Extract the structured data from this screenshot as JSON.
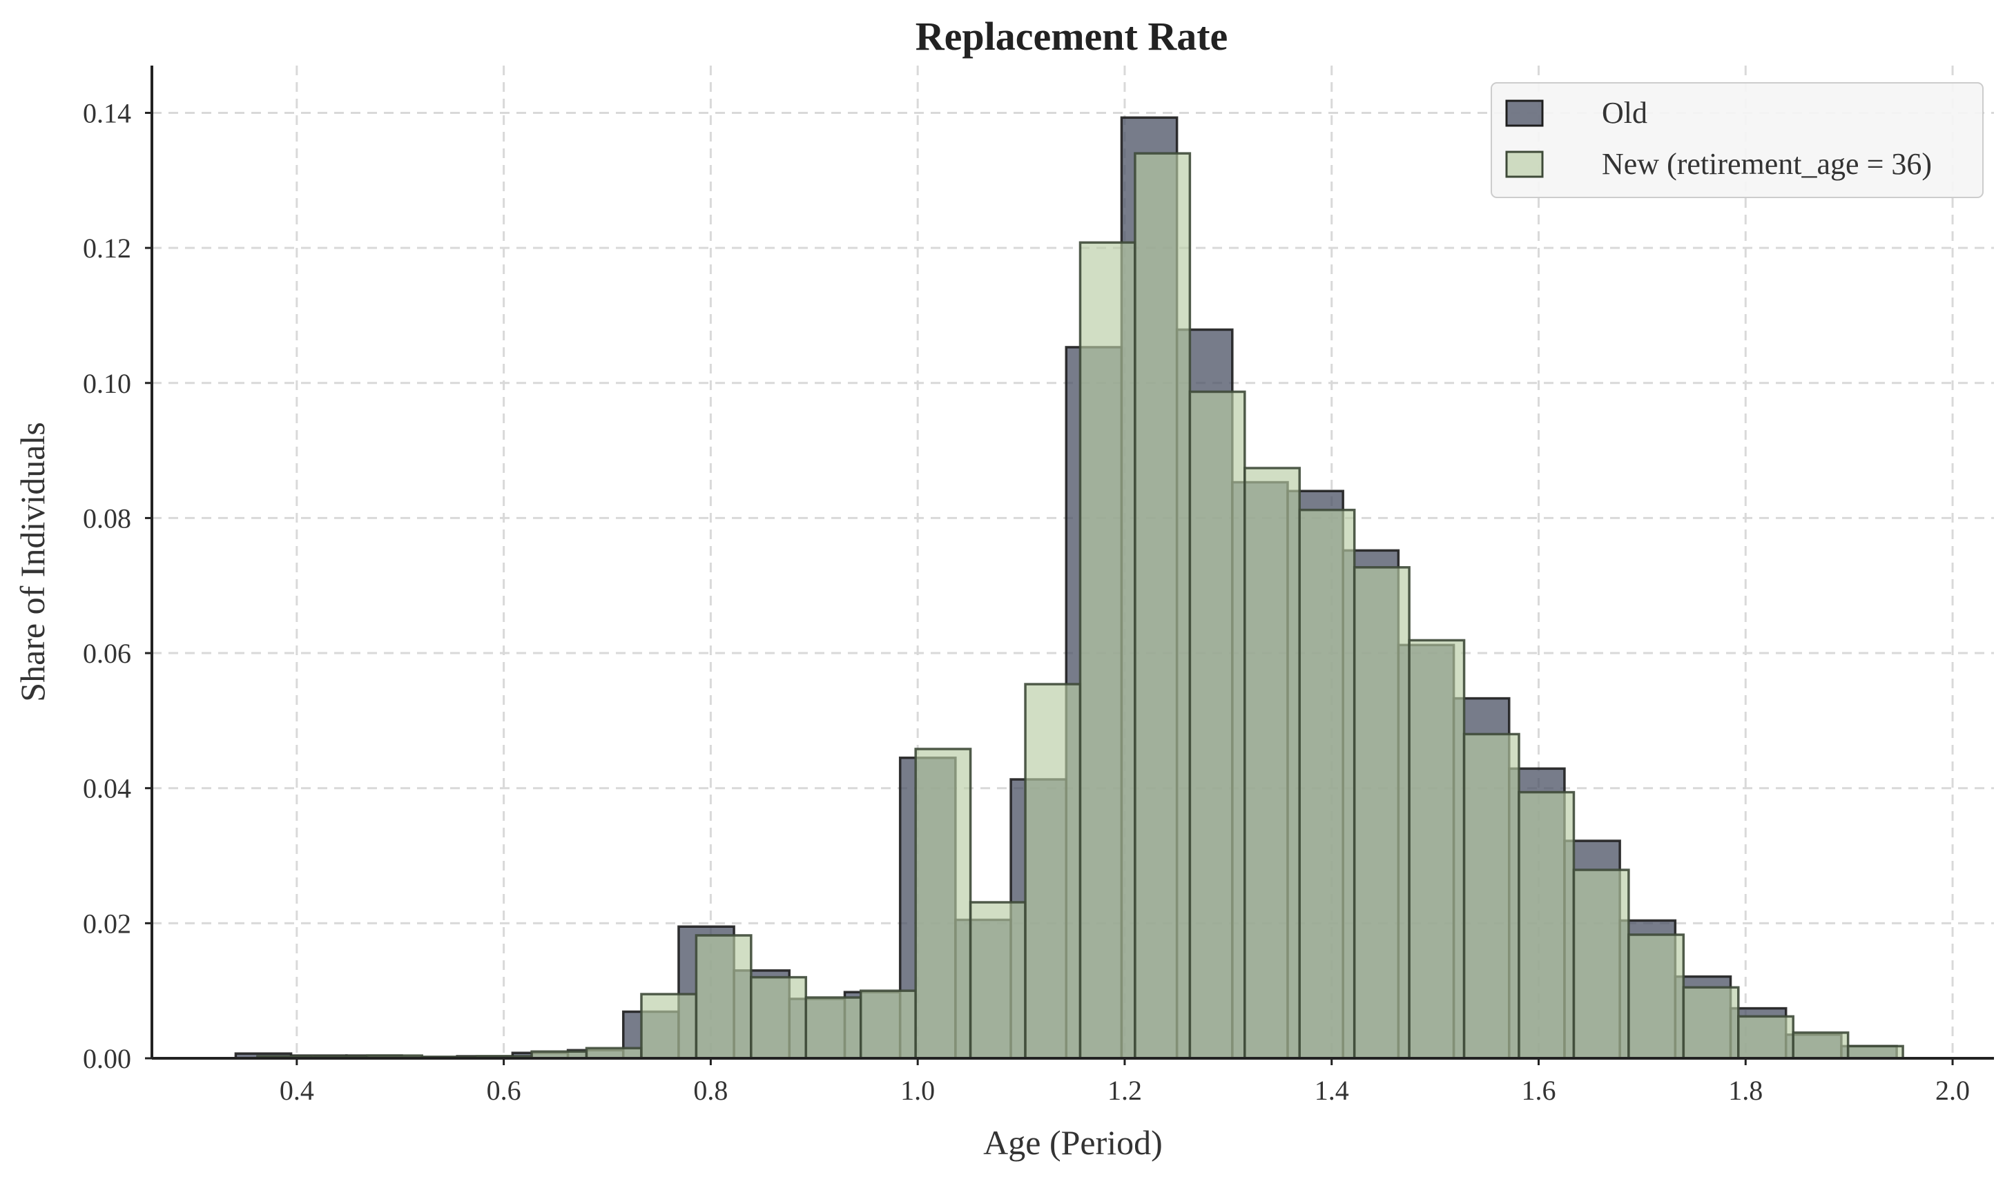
{
  "chart_data": {
    "type": "bar",
    "title": "Replacement Rate",
    "xlabel": "Age (Period)",
    "ylabel": "Share of Individuals",
    "xlim": [
      0.26,
      2.04
    ],
    "ylim": [
      0,
      0.147
    ],
    "xticks": [
      0.4,
      0.6,
      0.8,
      1.0,
      1.2,
      1.4,
      1.6,
      1.8,
      2.0
    ],
    "xtick_labels": [
      "0.4",
      "0.6",
      "0.8",
      "1.0",
      "1.2",
      "1.4",
      "1.6",
      "1.8",
      "2.0"
    ],
    "yticks": [
      0.0,
      0.02,
      0.04,
      0.06,
      0.08,
      0.1,
      0.12,
      0.14
    ],
    "ytick_labels": [
      "0.00",
      "0.02",
      "0.04",
      "0.06",
      "0.08",
      "0.10",
      "0.12",
      "0.14"
    ],
    "grid": true,
    "legend_position": "top-right",
    "series": [
      {
        "name": "Old",
        "color": "#4a5063",
        "edge_color": "#1e1e1e",
        "opacity": 0.75,
        "bin_width": 0.0535,
        "bin_edges_start": 0.341,
        "values": [
          0.0007,
          0.0004,
          0.0004,
          0.0002,
          0.0003,
          0.0008,
          0.0012,
          0.0069,
          0.0195,
          0.013,
          0.0088,
          0.0098,
          0.0445,
          0.0205,
          0.0413,
          0.1053,
          0.1393,
          0.1079,
          0.0853,
          0.084,
          0.0752,
          0.0612,
          0.0533,
          0.0429,
          0.0322,
          0.0204,
          0.0121,
          0.0074,
          0.0035,
          0.0018
        ]
      },
      {
        "name": "New (retirement_age = 36)",
        "color": "#b9cca5",
        "edge_color": "#3e4a38",
        "opacity": 0.65,
        "bin_width": 0.053,
        "bin_edges_start": 0.362,
        "values": [
          0.0003,
          0.0003,
          0.0004,
          0.0002,
          0.0003,
          0.001,
          0.0015,
          0.0095,
          0.0182,
          0.012,
          0.009,
          0.01,
          0.0458,
          0.0231,
          0.0554,
          0.1208,
          0.134,
          0.0987,
          0.0874,
          0.0812,
          0.0727,
          0.0619,
          0.048,
          0.0394,
          0.0279,
          0.0183,
          0.0105,
          0.0062,
          0.0038,
          0.0018
        ]
      }
    ]
  }
}
